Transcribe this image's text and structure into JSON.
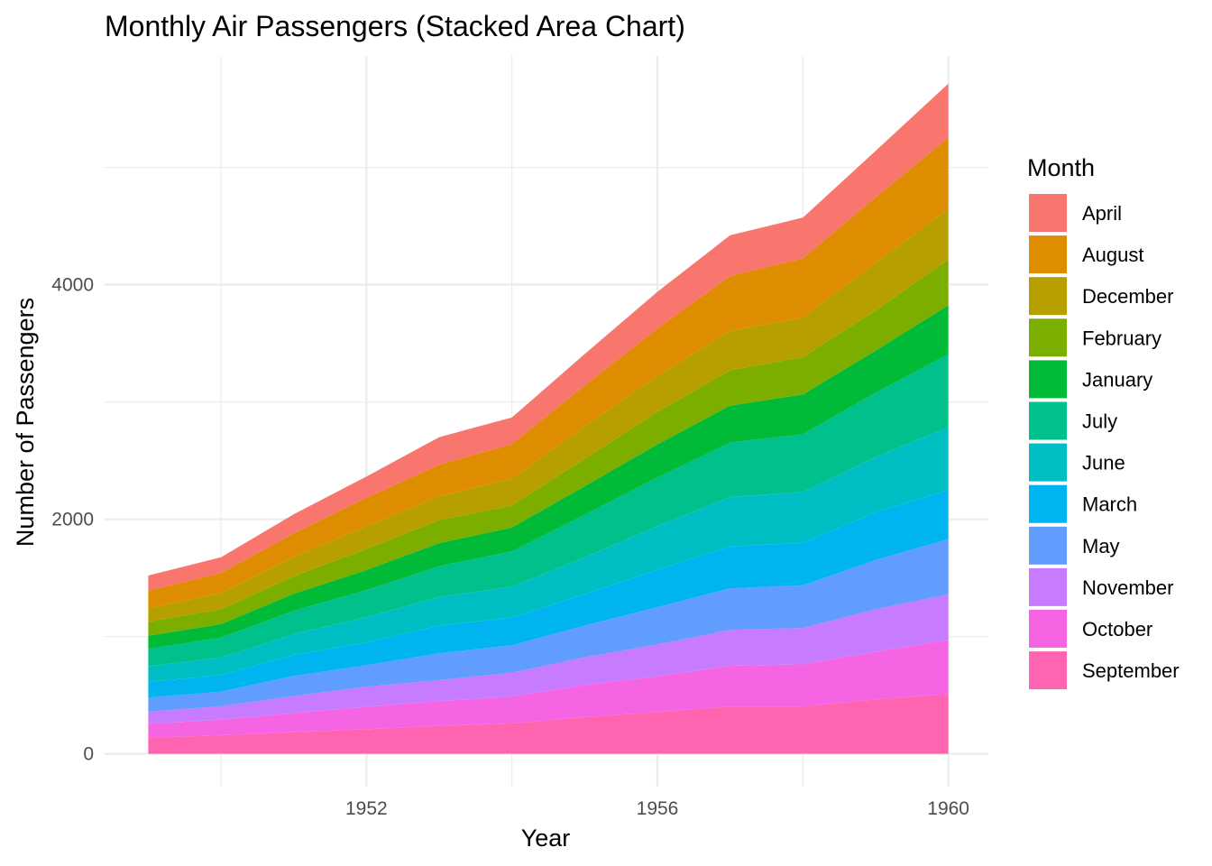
{
  "chart_data": {
    "type": "area",
    "stacked": true,
    "title": "Monthly Air Passengers (Stacked Area Chart)",
    "xlabel": "Year",
    "ylabel": "Number of Passengers",
    "x": [
      1949,
      1950,
      1951,
      1952,
      1953,
      1954,
      1955,
      1956,
      1957,
      1958,
      1959,
      1960
    ],
    "xlim": [
      1948.4,
      1960.55
    ],
    "ylim": [
      -280,
      5950
    ],
    "x_ticks": [
      1952,
      1956,
      1960
    ],
    "x_tick_labels": [
      "1952",
      "1956",
      "1960"
    ],
    "y_ticks": [
      0,
      2000,
      4000
    ],
    "y_tick_labels": [
      "0",
      "2000",
      "4000"
    ],
    "grid": true,
    "legend": {
      "title": "Month",
      "position": "right"
    },
    "stack_order_bottom_to_top": [
      "September",
      "October",
      "November",
      "May",
      "March",
      "June",
      "July",
      "January",
      "February",
      "December",
      "August",
      "April"
    ],
    "series": [
      {
        "name": "April",
        "color": "#F8766D",
        "values": [
          129,
          135,
          163,
          181,
          235,
          227,
          269,
          313,
          348,
          348,
          396,
          461
        ]
      },
      {
        "name": "August",
        "color": "#DE8C00",
        "values": [
          148,
          170,
          199,
          242,
          272,
          293,
          347,
          405,
          467,
          505,
          559,
          606
        ]
      },
      {
        "name": "December",
        "color": "#B79F00",
        "values": [
          118,
          140,
          166,
          194,
          201,
          229,
          278,
          306,
          336,
          337,
          405,
          432
        ]
      },
      {
        "name": "February",
        "color": "#7CAE00",
        "values": [
          118,
          126,
          150,
          180,
          196,
          188,
          233,
          277,
          301,
          318,
          342,
          391
        ]
      },
      {
        "name": "January",
        "color": "#00BA38",
        "values": [
          112,
          115,
          145,
          171,
          196,
          204,
          242,
          284,
          315,
          340,
          360,
          417
        ]
      },
      {
        "name": "July",
        "color": "#00C08B",
        "values": [
          148,
          170,
          199,
          230,
          264,
          302,
          364,
          413,
          465,
          491,
          548,
          622
        ]
      },
      {
        "name": "June",
        "color": "#00BFC4",
        "values": [
          135,
          149,
          178,
          218,
          243,
          264,
          315,
          374,
          422,
          435,
          472,
          535
        ]
      },
      {
        "name": "March",
        "color": "#00B4F0",
        "values": [
          132,
          141,
          178,
          193,
          236,
          235,
          267,
          317,
          356,
          362,
          406,
          419
        ]
      },
      {
        "name": "May",
        "color": "#619CFF",
        "values": [
          121,
          125,
          172,
          183,
          229,
          234,
          270,
          318,
          355,
          363,
          420,
          472
        ]
      },
      {
        "name": "November",
        "color": "#C77CFF",
        "values": [
          104,
          114,
          146,
          172,
          180,
          203,
          237,
          271,
          305,
          310,
          362,
          390
        ]
      },
      {
        "name": "October",
        "color": "#F564E3",
        "values": [
          119,
          133,
          162,
          191,
          211,
          229,
          274,
          306,
          347,
          359,
          407,
          461
        ]
      },
      {
        "name": "September",
        "color": "#FF64B0",
        "values": [
          136,
          158,
          184,
          209,
          237,
          259,
          312,
          355,
          404,
          404,
          463,
          508
        ]
      }
    ]
  }
}
